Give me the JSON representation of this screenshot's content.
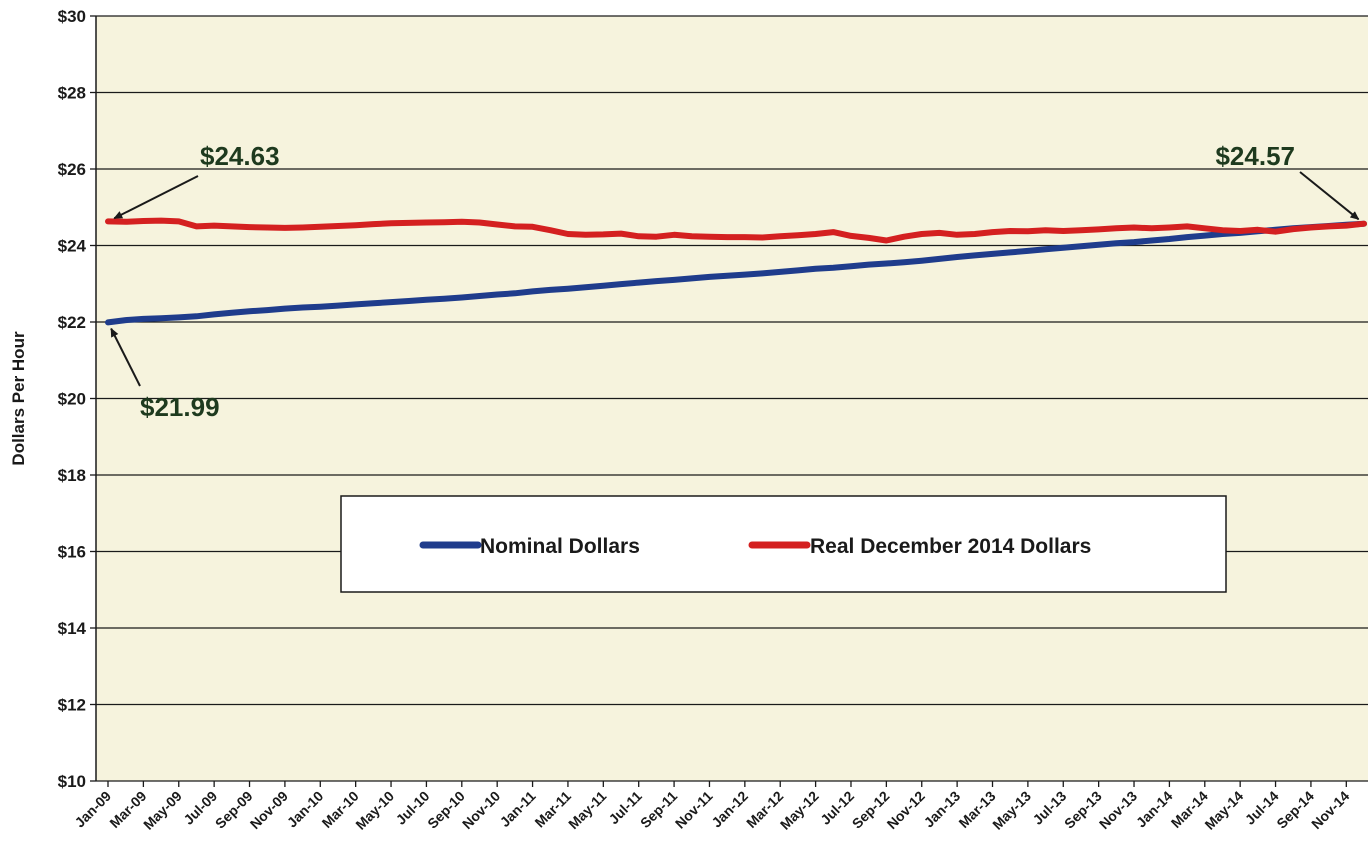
{
  "chart_data": {
    "type": "line",
    "title": "",
    "xlabel": "",
    "ylabel": "Dollars Per Hour",
    "ylim": [
      10,
      30
    ],
    "yticks": [
      "$10",
      "$12",
      "$14",
      "$16",
      "$18",
      "$20",
      "$22",
      "$24",
      "$26",
      "$28",
      "$30"
    ],
    "xtick_labels": [
      "Jan-09",
      "Mar-09",
      "May-09",
      "Jul-09",
      "Sep-09",
      "Nov-09",
      "Jan-10",
      "Mar-10",
      "May-10",
      "Jul-10",
      "Sep-10",
      "Nov-10",
      "Jan-11",
      "Mar-11",
      "May-11",
      "Jul-11",
      "Sep-11",
      "Nov-11",
      "Jan-12",
      "Mar-12",
      "May-12",
      "Jul-12",
      "Sep-12",
      "Nov-12",
      "Jan-13",
      "Mar-13",
      "May-13",
      "Jul-13",
      "Sep-13",
      "Nov-13",
      "Jan-14",
      "Mar-14",
      "May-14",
      "Jul-14",
      "Sep-14",
      "Nov-14"
    ],
    "grid": true,
    "legend": "center",
    "colors": {
      "plot_bg": "#f6f3dd",
      "nominal": "#1f3c8c",
      "real": "#d42020",
      "grid": "#1a1a1a"
    },
    "series": [
      {
        "name": "Nominal Dollars",
        "key": "nominal",
        "values": [
          21.99,
          22.05,
          22.08,
          22.1,
          22.12,
          22.15,
          22.2,
          22.24,
          22.28,
          22.31,
          22.35,
          22.38,
          22.4,
          22.43,
          22.46,
          22.49,
          22.52,
          22.55,
          22.58,
          22.61,
          22.64,
          22.68,
          22.72,
          22.75,
          22.8,
          22.84,
          22.87,
          22.91,
          22.95,
          22.99,
          23.03,
          23.07,
          23.1,
          23.14,
          23.18,
          23.21,
          23.24,
          23.27,
          23.31,
          23.35,
          23.39,
          23.42,
          23.46,
          23.5,
          23.53,
          23.56,
          23.6,
          23.65,
          23.7,
          23.74,
          23.78,
          23.82,
          23.86,
          23.9,
          23.94,
          23.98,
          24.02,
          24.06,
          24.09,
          24.13,
          24.17,
          24.22,
          24.26,
          24.3,
          24.33,
          24.37,
          24.41,
          24.45,
          24.48,
          24.51,
          24.54,
          24.57
        ]
      },
      {
        "name": "Real December 2014 Dollars",
        "key": "real",
        "values": [
          24.63,
          24.62,
          24.64,
          24.65,
          24.63,
          24.5,
          24.52,
          24.5,
          24.48,
          24.47,
          24.46,
          24.47,
          24.49,
          24.51,
          24.53,
          24.56,
          24.58,
          24.59,
          24.6,
          24.61,
          24.62,
          24.6,
          24.55,
          24.5,
          24.49,
          24.4,
          24.3,
          24.28,
          24.29,
          24.31,
          24.24,
          24.23,
          24.28,
          24.24,
          24.23,
          24.22,
          24.22,
          24.21,
          24.24,
          24.27,
          24.3,
          24.35,
          24.25,
          24.2,
          24.13,
          24.23,
          24.3,
          24.33,
          24.28,
          24.3,
          24.35,
          24.38,
          24.37,
          24.4,
          24.38,
          24.4,
          24.42,
          24.45,
          24.47,
          24.45,
          24.47,
          24.5,
          24.45,
          24.4,
          24.38,
          24.41,
          24.36,
          24.43,
          24.47,
          24.5,
          24.52,
          24.57
        ]
      }
    ],
    "annotations": [
      {
        "text": "$24.63",
        "series": "real",
        "index": 0
      },
      {
        "text": "$21.99",
        "series": "nominal",
        "index": 0
      },
      {
        "text": "$24.57",
        "series": "real",
        "index": 71
      }
    ]
  }
}
